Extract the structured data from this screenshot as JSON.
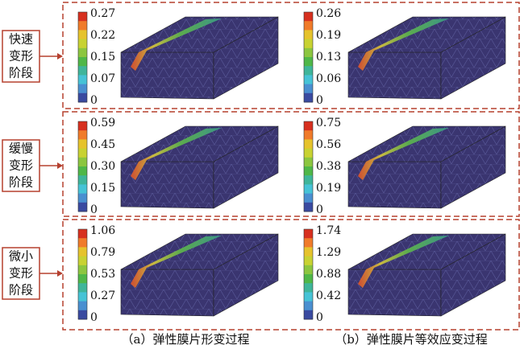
{
  "rows": [
    {
      "label": [
        "快速",
        "变形",
        "阶段"
      ],
      "panels": [
        {
          "ticks": [
            "0.27",
            "0.22",
            "0.15",
            "0.07",
            "0"
          ]
        },
        {
          "ticks": [
            "0.26",
            "0.19",
            "0.13",
            "0.06",
            "0"
          ]
        }
      ]
    },
    {
      "label": [
        "缓慢",
        "变形",
        "阶段"
      ],
      "panels": [
        {
          "ticks": [
            "0.59",
            "0.45",
            "0.30",
            "0.15",
            "0"
          ]
        },
        {
          "ticks": [
            "0.75",
            "0.56",
            "0.38",
            "0.19",
            "0"
          ]
        }
      ]
    },
    {
      "label": [
        "微小",
        "变形",
        "阶段"
      ],
      "panels": [
        {
          "ticks": [
            "1.06",
            "0.79",
            "0.53",
            "0.27",
            "0"
          ]
        },
        {
          "ticks": [
            "1.74",
            "1.29",
            "0.88",
            "0.42",
            "0"
          ]
        }
      ]
    }
  ],
  "captions": [
    "（a）弹性膜片形变过程",
    "（b）弹性膜片等效应变过程"
  ]
}
